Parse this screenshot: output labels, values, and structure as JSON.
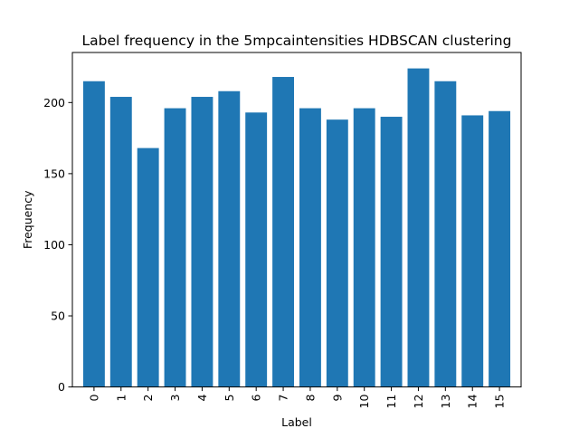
{
  "chart_data": {
    "type": "bar",
    "title": "Label frequency in the 5mpcaintensities HDBSCAN clustering",
    "xlabel": "Label",
    "ylabel": "Frequency",
    "categories": [
      "0",
      "1",
      "2",
      "3",
      "4",
      "5",
      "6",
      "7",
      "8",
      "9",
      "10",
      "11",
      "12",
      "13",
      "14",
      "15"
    ],
    "values": [
      215,
      204,
      168,
      196,
      204,
      208,
      193,
      218,
      196,
      188,
      196,
      190,
      224,
      215,
      191,
      194
    ],
    "ylim": [
      0,
      235.2
    ],
    "yticks": [
      0,
      50,
      100,
      150,
      200
    ],
    "bar_color": "#1f77b4",
    "xtick_rotation": "vertical",
    "grid": false
  }
}
